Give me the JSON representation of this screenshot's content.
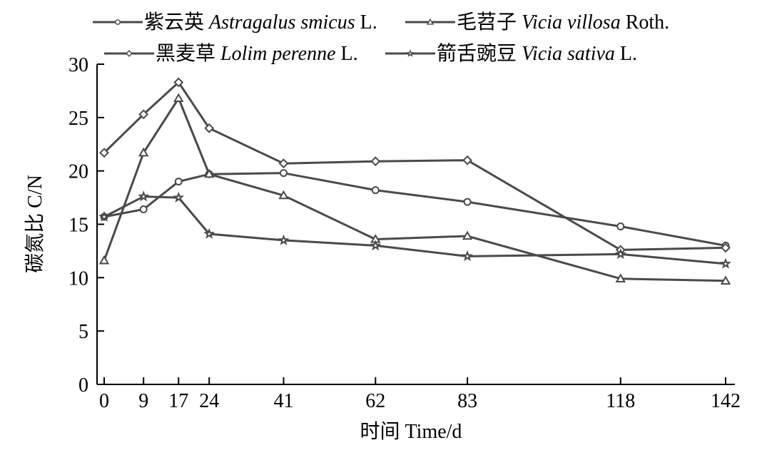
{
  "chart_data": {
    "type": "line",
    "xlabel": "时间 Time/d",
    "ylabel": "碳氮比 C/N",
    "ylim": [
      0,
      30
    ],
    "yticks": [
      0,
      5,
      10,
      15,
      20,
      25,
      30
    ],
    "xticks": [
      0,
      9,
      17,
      24,
      41,
      62,
      83,
      118,
      142
    ],
    "grid": false,
    "legend_position": "top",
    "series": [
      {
        "name_cn": "紫云英",
        "name_latin": "Astragalus smicus",
        "name_suffix": "L.",
        "marker": "circle",
        "x": [
          0,
          9,
          17,
          24,
          41,
          62,
          83,
          118,
          142
        ],
        "y": [
          15.7,
          16.4,
          19.0,
          19.7,
          19.8,
          18.2,
          17.1,
          14.8,
          13.0
        ]
      },
      {
        "name_cn": "毛苕子",
        "name_latin": "Vicia villosa",
        "name_suffix": "Roth.",
        "marker": "triangle",
        "x": [
          0,
          9,
          17,
          24,
          41,
          62,
          83,
          118,
          142
        ],
        "y": [
          11.6,
          21.7,
          26.8,
          19.7,
          17.7,
          13.6,
          13.9,
          9.9,
          9.7
        ]
      },
      {
        "name_cn": "黑麦草",
        "name_latin": "Lolim perenne",
        "name_suffix": "L.",
        "marker": "diamond",
        "x": [
          0,
          9,
          17,
          24,
          41,
          62,
          83,
          118,
          142
        ],
        "y": [
          21.7,
          25.3,
          28.3,
          24.0,
          20.7,
          20.9,
          21.0,
          12.6,
          12.8
        ]
      },
      {
        "name_cn": "箭舌豌豆",
        "name_latin": "Vicia sativa",
        "name_suffix": "L.",
        "marker": "star",
        "x": [
          0,
          9,
          17,
          24,
          41,
          62,
          83,
          118,
          142
        ],
        "y": [
          15.7,
          17.6,
          17.5,
          14.1,
          13.5,
          13.0,
          12.0,
          12.2,
          11.3
        ]
      }
    ]
  }
}
